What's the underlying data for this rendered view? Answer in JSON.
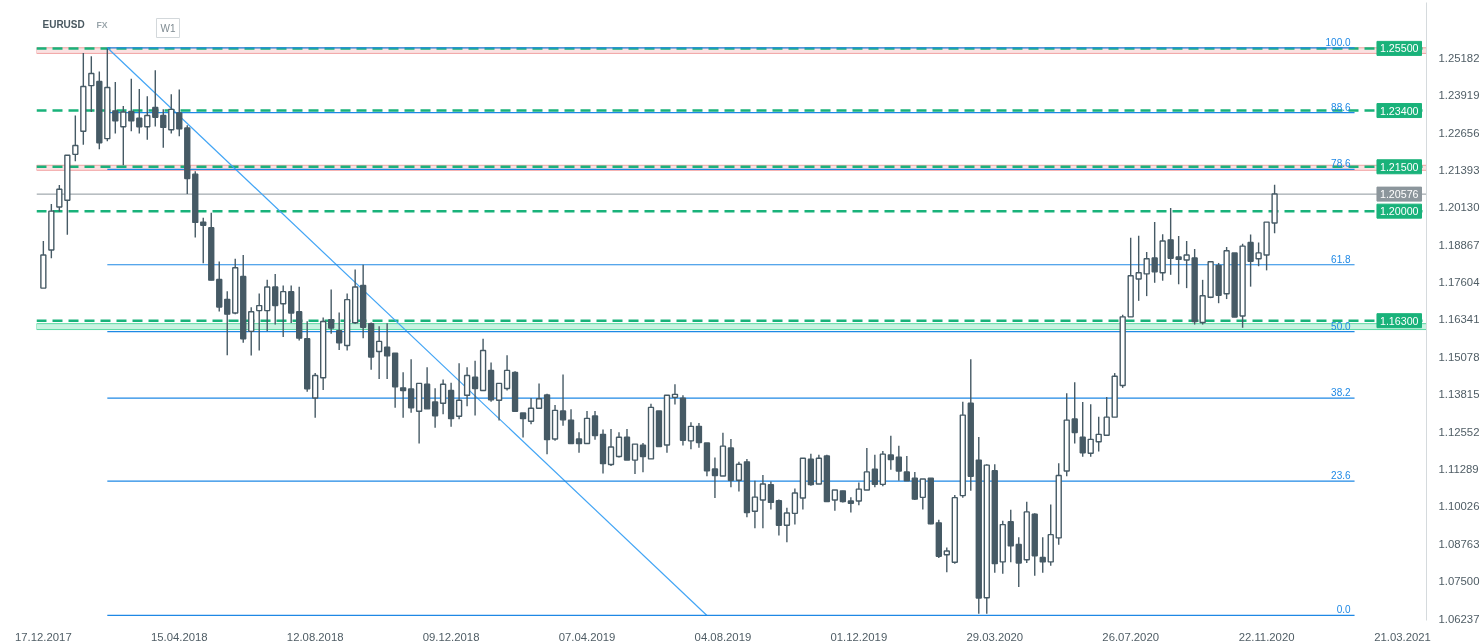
{
  "chart_data": {
    "type": "candlestick",
    "title": "EURUSD",
    "annotations": [
      "FX",
      "W1"
    ],
    "color": "#465a65",
    "grid": false,
    "x": [
      "2017-12-17",
      "2017-12-24",
      "2017-12-31",
      "2018-01-07",
      "2018-01-14",
      "2018-01-21",
      "2018-01-28",
      "2018-02-04",
      "2018-02-11",
      "2018-02-18",
      "2018-02-25",
      "2018-03-04",
      "2018-03-11",
      "2018-03-18",
      "2018-03-25",
      "2018-04-01",
      "2018-04-08",
      "2018-04-15",
      "2018-04-22",
      "2018-04-29",
      "2018-05-06",
      "2018-05-13",
      "2018-05-20",
      "2018-05-27",
      "2018-06-03",
      "2018-06-10",
      "2018-06-17",
      "2018-06-24",
      "2018-07-01",
      "2018-07-08",
      "2018-07-15",
      "2018-07-22",
      "2018-07-29",
      "2018-08-05",
      "2018-08-12",
      "2018-08-19",
      "2018-08-26",
      "2018-09-02",
      "2018-09-09",
      "2018-09-16",
      "2018-09-23",
      "2018-09-30",
      "2018-10-07",
      "2018-10-14",
      "2018-10-21",
      "2018-10-28",
      "2018-11-04",
      "2018-11-11",
      "2018-11-18",
      "2018-11-25",
      "2018-12-02",
      "2018-12-09",
      "2018-12-16",
      "2018-12-23",
      "2018-12-30",
      "2019-01-06",
      "2019-01-13",
      "2019-01-20",
      "2019-01-27",
      "2019-02-03",
      "2019-02-10",
      "2019-02-17",
      "2019-02-24",
      "2019-03-03",
      "2019-03-10",
      "2019-03-17",
      "2019-03-24",
      "2019-03-31",
      "2019-04-07",
      "2019-04-14",
      "2019-04-21",
      "2019-04-28",
      "2019-05-05",
      "2019-05-12",
      "2019-05-19",
      "2019-05-26",
      "2019-06-02",
      "2019-06-09",
      "2019-06-16",
      "2019-06-23",
      "2019-06-30",
      "2019-07-07",
      "2019-07-14",
      "2019-07-21",
      "2019-07-28",
      "2019-08-04",
      "2019-08-11",
      "2019-08-18",
      "2019-08-25",
      "2019-09-01",
      "2019-09-08",
      "2019-09-15",
      "2019-09-22",
      "2019-09-29",
      "2019-10-06",
      "2019-10-13",
      "2019-10-20",
      "2019-10-27",
      "2019-11-03",
      "2019-11-10",
      "2019-11-17",
      "2019-11-24",
      "2019-12-01",
      "2019-12-08",
      "2019-12-15",
      "2019-12-22",
      "2019-12-29",
      "2020-01-05",
      "2020-01-12",
      "2020-01-19",
      "2020-01-26",
      "2020-02-02",
      "2020-02-09",
      "2020-02-16",
      "2020-02-23",
      "2020-03-01",
      "2020-03-08",
      "2020-03-15",
      "2020-03-22",
      "2020-03-29",
      "2020-04-05",
      "2020-04-12",
      "2020-04-19",
      "2020-04-26",
      "2020-05-03",
      "2020-05-10",
      "2020-05-17",
      "2020-05-24",
      "2020-05-31",
      "2020-06-07",
      "2020-06-14",
      "2020-06-21",
      "2020-06-28",
      "2020-07-05",
      "2020-07-12",
      "2020-07-19",
      "2020-07-26",
      "2020-08-02",
      "2020-08-09",
      "2020-08-16",
      "2020-08-23",
      "2020-08-30",
      "2020-09-06",
      "2020-09-13",
      "2020-09-20",
      "2020-09-27",
      "2020-10-04",
      "2020-10-11",
      "2020-10-18",
      "2020-10-25",
      "2020-11-01",
      "2020-11-08",
      "2020-11-15",
      "2020-11-22",
      "2020-11-29"
    ],
    "ohlc": [
      [
        1.174,
        1.1899,
        1.174,
        1.1852
      ],
      [
        1.1869,
        1.2024,
        1.1841,
        1.2
      ],
      [
        1.2014,
        1.2088,
        1.1998,
        1.2074
      ],
      [
        1.2037,
        1.2189,
        1.192,
        1.2189
      ],
      [
        1.2192,
        1.2323,
        1.2169,
        1.2222
      ],
      [
        1.227,
        1.2534,
        1.2224,
        1.2421
      ],
      [
        1.2424,
        1.2523,
        1.2335,
        1.2465
      ],
      [
        1.2438,
        1.2472,
        1.2209,
        1.2231
      ],
      [
        1.2245,
        1.255,
        1.2236,
        1.2418
      ],
      [
        1.2339,
        1.2436,
        1.2262,
        1.2305
      ],
      [
        1.2285,
        1.2355,
        1.2155,
        1.2335
      ],
      [
        1.2337,
        1.2447,
        1.227,
        1.2305
      ],
      [
        1.2314,
        1.2413,
        1.2262,
        1.2285
      ],
      [
        1.2285,
        1.2388,
        1.2241,
        1.2323
      ],
      [
        1.235,
        1.2476,
        1.2286,
        1.2317
      ],
      [
        1.2323,
        1.2344,
        1.2214,
        1.2283
      ],
      [
        1.2275,
        1.2395,
        1.2262,
        1.2344
      ],
      [
        1.2332,
        1.2411,
        1.2253,
        1.2278
      ],
      [
        1.2281,
        1.229,
        1.2058,
        1.211
      ],
      [
        1.2125,
        1.2135,
        1.1911,
        1.1962
      ],
      [
        1.1963,
        1.1978,
        1.1824,
        1.1952
      ],
      [
        1.1944,
        1.1995,
        1.1767,
        1.1767
      ],
      [
        1.1769,
        1.183,
        1.1661,
        1.1676
      ],
      [
        1.1702,
        1.1729,
        1.1513,
        1.1652
      ],
      [
        1.1656,
        1.1839,
        1.1652,
        1.1809
      ],
      [
        1.1779,
        1.1852,
        1.1555,
        1.1569
      ],
      [
        1.1594,
        1.1675,
        1.1512,
        1.166
      ],
      [
        1.1664,
        1.1722,
        1.1529,
        1.1681
      ],
      [
        1.1664,
        1.1768,
        1.1594,
        1.1744
      ],
      [
        1.1744,
        1.1788,
        1.1617,
        1.1681
      ],
      [
        1.1687,
        1.1749,
        1.1575,
        1.1728
      ],
      [
        1.1728,
        1.1749,
        1.1622,
        1.1656
      ],
      [
        1.166,
        1.1745,
        1.1563,
        1.1571
      ],
      [
        1.1569,
        1.1628,
        1.139,
        1.14
      ],
      [
        1.1369,
        1.1453,
        1.1302,
        1.1445
      ],
      [
        1.1437,
        1.1641,
        1.1396,
        1.1627
      ],
      [
        1.1633,
        1.1735,
        1.1586,
        1.1605
      ],
      [
        1.1596,
        1.1658,
        1.1531,
        1.1555
      ],
      [
        1.1546,
        1.1722,
        1.1529,
        1.1701
      ],
      [
        1.1623,
        1.1803,
        1.1619,
        1.1744
      ],
      [
        1.1749,
        1.1819,
        1.1571,
        1.1608
      ],
      [
        1.162,
        1.1624,
        1.1464,
        1.1507
      ],
      [
        1.1526,
        1.1611,
        1.1433,
        1.156
      ],
      [
        1.154,
        1.1621,
        1.1433,
        1.1511
      ],
      [
        1.152,
        1.152,
        1.1336,
        1.1407
      ],
      [
        1.1403,
        1.1456,
        1.1302,
        1.1394
      ],
      [
        1.1399,
        1.15,
        1.1319,
        1.1336
      ],
      [
        1.1324,
        1.1418,
        1.1215,
        1.1418
      ],
      [
        1.1415,
        1.1473,
        1.1332,
        1.1332
      ],
      [
        1.1355,
        1.1402,
        1.1268,
        1.1309
      ],
      [
        1.1351,
        1.1431,
        1.1314,
        1.1415
      ],
      [
        1.1394,
        1.142,
        1.1272,
        1.1299
      ],
      [
        1.1307,
        1.1486,
        1.1297,
        1.1361
      ],
      [
        1.1378,
        1.1473,
        1.1341,
        1.1445
      ],
      [
        1.1439,
        1.1495,
        1.131,
        1.1401
      ],
      [
        1.1394,
        1.1569,
        1.1394,
        1.1529
      ],
      [
        1.1462,
        1.1489,
        1.1356,
        1.1363
      ],
      [
        1.1361,
        1.1418,
        1.1293,
        1.1418
      ],
      [
        1.1401,
        1.1513,
        1.1394,
        1.1462
      ],
      [
        1.1455,
        1.1459,
        1.1324,
        1.1324
      ],
      [
        1.1318,
        1.1318,
        1.1235,
        1.1299
      ],
      [
        1.129,
        1.1369,
        1.128,
        1.1334
      ],
      [
        1.1334,
        1.1418,
        1.1334,
        1.1366
      ],
      [
        1.1379,
        1.1383,
        1.1179,
        1.1228
      ],
      [
        1.123,
        1.1345,
        1.1224,
        1.1327
      ],
      [
        1.1325,
        1.1448,
        1.1275,
        1.1295
      ],
      [
        1.1294,
        1.1331,
        1.1213,
        1.1215
      ],
      [
        1.123,
        1.1253,
        1.1184,
        1.1215
      ],
      [
        1.1215,
        1.1325,
        1.1215,
        1.13
      ],
      [
        1.1308,
        1.1325,
        1.1228,
        1.1242
      ],
      [
        1.1246,
        1.1262,
        1.1114,
        1.1147
      ],
      [
        1.1144,
        1.1264,
        1.1139,
        1.1203
      ],
      [
        1.1171,
        1.1253,
        1.1168,
        1.1236
      ],
      [
        1.1236,
        1.1264,
        1.1159,
        1.1159
      ],
      [
        1.1159,
        1.1213,
        1.1112,
        1.1213
      ],
      [
        1.1209,
        1.1217,
        1.1118,
        1.1171
      ],
      [
        1.1163,
        1.1349,
        1.1163,
        1.1337
      ],
      [
        1.1325,
        1.1325,
        1.1205,
        1.1205
      ],
      [
        1.121,
        1.1378,
        1.1184,
        1.1378
      ],
      [
        1.1371,
        1.1415,
        1.1347,
        1.1381
      ],
      [
        1.1368,
        1.1378,
        1.1208,
        1.1226
      ],
      [
        1.1224,
        1.1287,
        1.1196,
        1.1273
      ],
      [
        1.1273,
        1.1284,
        1.1201,
        1.1218
      ],
      [
        1.1217,
        1.1217,
        1.1104,
        1.1123
      ],
      [
        1.1129,
        1.1168,
        1.1031,
        1.1107
      ],
      [
        1.1105,
        1.1251,
        1.1105,
        1.1206
      ],
      [
        1.12,
        1.123,
        1.1067,
        1.1091
      ],
      [
        1.1091,
        1.1153,
        1.1053,
        1.1145
      ],
      [
        1.1153,
        1.1163,
        1.0966,
        1.0982
      ],
      [
        1.0986,
        1.1089,
        1.0929,
        1.1034
      ],
      [
        1.1024,
        1.1109,
        1.0929,
        1.1078
      ],
      [
        1.1076,
        1.1087,
        1.0992,
        1.1016
      ],
      [
        1.1022,
        1.1026,
        1.0904,
        1.0939
      ],
      [
        1.0939,
        1.0998,
        1.0881,
        1.098
      ],
      [
        1.0979,
        1.1063,
        1.0941,
        1.1048
      ],
      [
        1.1031,
        1.1165,
        1.0992,
        1.1165
      ],
      [
        1.1162,
        1.118,
        1.1072,
        1.1076
      ],
      [
        1.1078,
        1.1177,
        1.1078,
        1.1165
      ],
      [
        1.1173,
        1.1177,
        1.1019,
        1.1019
      ],
      [
        1.1024,
        1.1058,
        1.0988,
        1.1058
      ],
      [
        1.1055,
        1.1055,
        1.1016,
        1.1019
      ],
      [
        1.1021,
        1.1033,
        1.0982,
        1.1013
      ],
      [
        1.1021,
        1.1083,
        1.1006,
        1.1061
      ],
      [
        1.1058,
        1.12,
        1.1058,
        1.1119
      ],
      [
        1.1128,
        1.1177,
        1.1067,
        1.1077
      ],
      [
        1.1077,
        1.119,
        1.1071,
        1.1179
      ],
      [
        1.1176,
        1.1241,
        1.1126,
        1.1161
      ],
      [
        1.1169,
        1.1207,
        1.1089,
        1.1122
      ],
      [
        1.1119,
        1.1173,
        1.1089,
        1.1089
      ],
      [
        1.1098,
        1.1119,
        1.1024,
        1.1027
      ],
      [
        1.1033,
        1.1095,
        1.0992,
        1.1095
      ],
      [
        1.1098,
        1.1098,
        1.0942,
        1.0944
      ],
      [
        1.0947,
        1.0957,
        1.0828,
        1.0834
      ],
      [
        1.0839,
        1.0864,
        1.078,
        1.0852
      ],
      [
        1.0814,
        1.1041,
        1.0809,
        1.1032
      ],
      [
        1.1039,
        1.1356,
        1.1032,
        1.1311
      ],
      [
        1.1351,
        1.15,
        1.1055,
        1.1104
      ],
      [
        1.1159,
        1.1237,
        1.064,
        1.0693
      ],
      [
        1.0694,
        1.1145,
        1.064,
        1.1142
      ],
      [
        1.1123,
        1.1145,
        1.0778,
        1.0809
      ],
      [
        1.0815,
        1.0954,
        1.0775,
        1.0941
      ],
      [
        1.0951,
        1.0991,
        1.0814,
        1.0869
      ],
      [
        1.0874,
        1.0898,
        1.073,
        1.0811
      ],
      [
        1.0822,
        1.1018,
        1.0811,
        1.0984
      ],
      [
        1.0976,
        1.0979,
        1.0768,
        1.0836
      ],
      [
        1.083,
        1.0898,
        1.0778,
        1.0815
      ],
      [
        1.0815,
        1.1009,
        1.0802,
        1.0907
      ],
      [
        1.0896,
        1.1148,
        1.0873,
        1.1107
      ],
      [
        1.1122,
        1.1385,
        1.1104,
        1.1294
      ],
      [
        1.1298,
        1.1422,
        1.1215,
        1.1252
      ],
      [
        1.1236,
        1.1355,
        1.117,
        1.1184
      ],
      [
        1.1182,
        1.1348,
        1.117,
        1.1229
      ],
      [
        1.1221,
        1.1305,
        1.1188,
        1.1246
      ],
      [
        1.1243,
        1.1372,
        1.1243,
        1.1304
      ],
      [
        1.1304,
        1.1453,
        1.1304,
        1.1442
      ],
      [
        1.1411,
        1.165,
        1.1403,
        1.1643
      ],
      [
        1.1643,
        1.191,
        1.1643,
        1.1782
      ],
      [
        1.1771,
        1.1917,
        1.1697,
        1.1792
      ],
      [
        1.1788,
        1.1862,
        1.1713,
        1.1839
      ],
      [
        1.1842,
        1.1963,
        1.1758,
        1.1795
      ],
      [
        1.1792,
        1.1922,
        1.1765,
        1.1899
      ],
      [
        1.1903,
        1.2011,
        1.1785,
        1.1841
      ],
      [
        1.1845,
        1.1916,
        1.1753,
        1.1837
      ],
      [
        1.1835,
        1.1899,
        1.174,
        1.1852
      ],
      [
        1.1842,
        1.1872,
        1.1617,
        1.1627
      ],
      [
        1.1624,
        1.1768,
        1.1617,
        1.1714
      ],
      [
        1.1709,
        1.1829,
        1.1706,
        1.1829
      ],
      [
        1.1817,
        1.1825,
        1.1689,
        1.1716
      ],
      [
        1.1721,
        1.1879,
        1.1703,
        1.1866
      ],
      [
        1.1859,
        1.1859,
        1.1642,
        1.1642
      ],
      [
        1.1646,
        1.189,
        1.1606,
        1.1882
      ],
      [
        1.1894,
        1.1921,
        1.1745,
        1.1831
      ],
      [
        1.1839,
        1.1894,
        1.1814,
        1.1859
      ],
      [
        1.1852,
        1.1963,
        1.18,
        1.1963
      ],
      [
        1.196,
        1.2089,
        1.1925,
        1.2058
      ]
    ],
    "xlim": [
      "2017-12-11",
      "2021-04-11"
    ],
    "xticks": [
      {
        "value": "2017-12-17",
        "label": "17.12.2017"
      },
      {
        "value": "2018-04-15",
        "label": "15.04.2018"
      },
      {
        "value": "2018-08-12",
        "label": "12.08.2018"
      },
      {
        "value": "2018-12-09",
        "label": "09.12.2018"
      },
      {
        "value": "2019-04-07",
        "label": "07.04.2019"
      },
      {
        "value": "2019-08-04",
        "label": "04.08.2019"
      },
      {
        "value": "2019-12-01",
        "label": "01.12.2019"
      },
      {
        "value": "2020-03-29",
        "label": "29.03.2020"
      },
      {
        "value": "2020-07-26",
        "label": "26.07.2020"
      },
      {
        "value": "2020-11-22",
        "label": "22.11.2020"
      },
      {
        "value": "2021-03-21",
        "label": "21.03.2021"
      }
    ],
    "ylim": [
      1.0617,
      1.2705
    ],
    "yticks": [
      1.25182,
      1.23919,
      1.22656,
      1.21393,
      {
        "value": 1.2013,
        "label": "1.20130"
      },
      1.18867,
      1.17604,
      1.16341,
      1.15078,
      1.13815,
      1.12552,
      1.11289,
      1.10026,
      1.08763,
      {
        "value": 1.075,
        "label": "1.07500"
      },
      1.06237
    ],
    "series": [
      {
        "type": "line",
        "color": "#42a5f5",
        "x": [
          "2018-02-11",
          "2019-07-21"
        ],
        "values": [
          1.2552,
          1.0634
        ]
      },
      {
        "type": "line",
        "name": "100.0",
        "color": "#1e88e5",
        "x": [
          "2018-02-11",
          "2021-02-07"
        ],
        "values": [
          1.2552,
          1.2552
        ]
      },
      {
        "type": "line",
        "name": "88.6",
        "color": "#1e88e5",
        "x": [
          "2018-02-11",
          "2021-02-07"
        ],
        "values": [
          1.2333,
          1.2333
        ]
      },
      {
        "type": "line",
        "name": "78.6",
        "color": "#1e88e5",
        "x": [
          "2018-02-11",
          "2021-02-07"
        ],
        "values": [
          1.2141,
          1.2141
        ]
      },
      {
        "type": "line",
        "name": "61.8",
        "color": "#1e88e5",
        "x": [
          "2018-02-11",
          "2021-02-07"
        ],
        "values": [
          1.1819,
          1.1819
        ]
      },
      {
        "type": "line",
        "name": "50.0",
        "color": "#1e88e5",
        "x": [
          "2018-02-11",
          "2021-02-07"
        ],
        "values": [
          1.1593,
          1.1593
        ]
      },
      {
        "type": "line",
        "name": "38.2",
        "color": "#1e88e5",
        "x": [
          "2018-02-11",
          "2021-02-07"
        ],
        "values": [
          1.1368,
          1.1368
        ]
      },
      {
        "type": "line",
        "name": "23.6",
        "color": "#1e88e5",
        "x": [
          "2018-02-11",
          "2021-02-07"
        ],
        "values": [
          1.1088,
          1.1088
        ]
      },
      {
        "type": "line",
        "name": "0.0",
        "color": "#1e88e5",
        "x": [
          "2018-02-11",
          "2021-02-07"
        ],
        "values": [
          1.0634,
          1.0634
        ]
      }
    ],
    "ref_lines": [
      {
        "axis": "y",
        "value": 1.255,
        "label": "1.25500",
        "color": "#19b27a",
        "line_style": "dashed"
      },
      {
        "axis": "y",
        "value": 1.234,
        "label": "1.23400",
        "color": "#19b27a",
        "line_style": "dashed"
      },
      {
        "axis": "y",
        "value": 1.215,
        "label": "1.21500",
        "color": "#19b27a",
        "line_style": "dashed"
      },
      {
        "axis": "y",
        "value": 1.2,
        "label": "1.20000",
        "color": "#19b27a",
        "line_style": "dashed"
      },
      {
        "axis": "y",
        "value": 1.163,
        "label": "1.16300",
        "color": "#19b27a",
        "line_style": "dashed"
      },
      {
        "axis": "y",
        "value": 1.20576,
        "label": "1.20576",
        "color": "#8c969c",
        "line_style": "solid"
      }
    ],
    "bands": [
      {
        "axis": "y",
        "from": 1.2533,
        "to": 1.2552,
        "color": "#ef9a9a"
      },
      {
        "axis": "y",
        "from": 1.2138,
        "to": 1.2155,
        "color": "#ef9a9a"
      },
      {
        "axis": "y",
        "from": 1.16,
        "to": 1.162,
        "color": "#4cd69a"
      }
    ]
  }
}
